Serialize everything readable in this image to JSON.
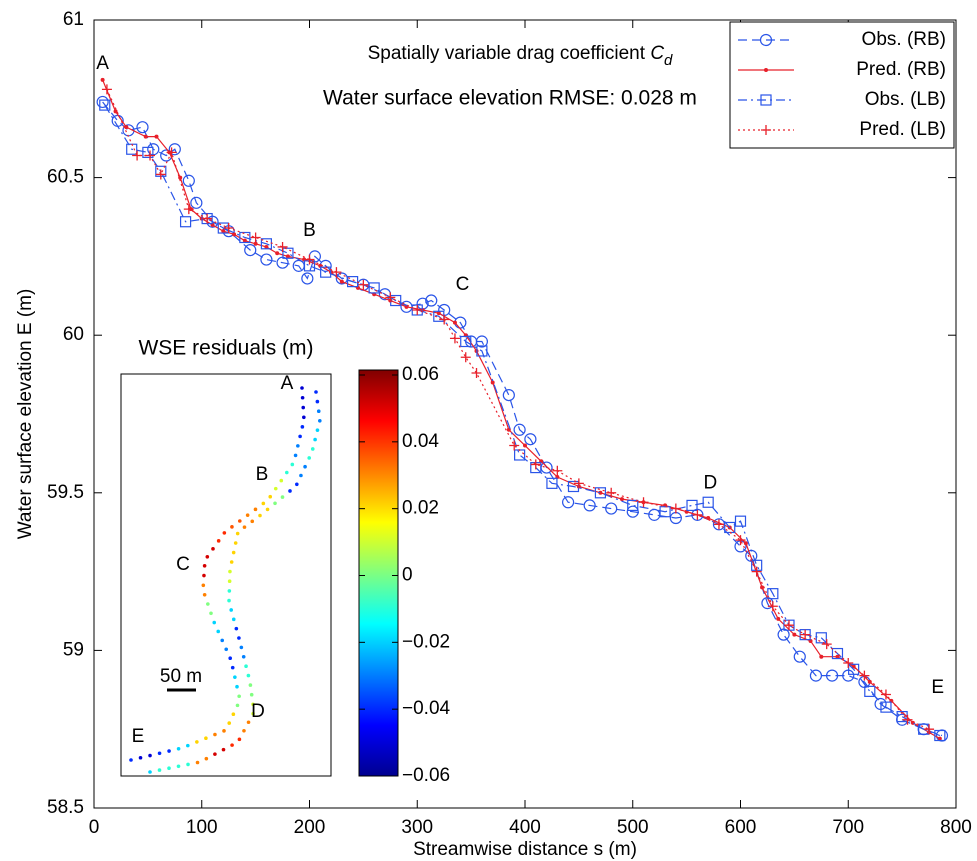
{
  "chart_data": [
    {
      "type": "line",
      "title": "Spatially variable drag coefficient",
      "title_symbol": "C",
      "title_subscript": "d",
      "subtitle": "Water surface elevation RMSE: 0.028 m",
      "x_label": "Streamwise distance s (m)",
      "y_label": "Water surface elevation  E (m)",
      "xlim": [
        0,
        800
      ],
      "xticks": [
        0,
        100,
        200,
        300,
        400,
        500,
        600,
        700,
        800
      ],
      "ylim": [
        58.5,
        61
      ],
      "yticks": [
        58.5,
        59,
        59.5,
        60,
        60.5,
        61
      ],
      "legend": "upper right",
      "annotations": [
        {
          "text": "A",
          "x": 8,
          "y": 60.86
        },
        {
          "text": "B",
          "x": 200,
          "y": 60.33
        },
        {
          "text": "C",
          "x": 342,
          "y": 60.16
        },
        {
          "text": "D",
          "x": 572,
          "y": 59.53
        },
        {
          "text": "E",
          "x": 783,
          "y": 58.88
        }
      ],
      "series": [
        {
          "name": "Obs. (RB)",
          "color": "#2a55e8",
          "linestyle": "dashed",
          "marker": "circle",
          "x": [
            8,
            22,
            32,
            45,
            55,
            67,
            75,
            88,
            95,
            110,
            125,
            145,
            160,
            175,
            190,
            198,
            205,
            215,
            230,
            250,
            270,
            290,
            305,
            313,
            325,
            340,
            350,
            360,
            385,
            395,
            405,
            420,
            440,
            460,
            480,
            500,
            520,
            540,
            560,
            580,
            600,
            610,
            625,
            640,
            655,
            670,
            685,
            700,
            715,
            730,
            750,
            770,
            787
          ],
          "values": [
            60.74,
            60.68,
            60.65,
            60.66,
            60.59,
            60.57,
            60.59,
            60.49,
            60.42,
            60.36,
            60.33,
            60.27,
            60.24,
            60.23,
            60.22,
            60.18,
            60.25,
            60.22,
            60.18,
            60.16,
            60.13,
            60.09,
            60.1,
            60.11,
            60.08,
            60.04,
            59.98,
            59.98,
            59.81,
            59.7,
            59.67,
            59.58,
            59.47,
            59.46,
            59.45,
            59.44,
            59.43,
            59.42,
            59.43,
            59.4,
            59.33,
            59.3,
            59.15,
            59.05,
            58.98,
            58.92,
            58.92,
            58.92,
            58.9,
            58.83,
            58.78,
            58.75,
            58.73
          ]
        },
        {
          "name": "Pred. (RB)",
          "color": "#e8202a",
          "linestyle": "solid",
          "marker": "dot",
          "x": [
            8,
            20,
            30,
            48,
            58,
            70,
            80,
            90,
            100,
            110,
            120,
            130,
            140,
            150,
            160,
            170,
            180,
            195,
            210,
            220,
            230,
            245,
            260,
            275,
            290,
            305,
            320,
            335,
            345,
            355,
            370,
            385,
            400,
            415,
            430,
            450,
            470,
            490,
            510,
            530,
            550,
            570,
            590,
            605,
            620,
            635,
            650,
            665,
            675,
            690,
            705,
            720,
            740,
            760,
            775,
            785
          ],
          "values": [
            60.81,
            60.71,
            60.66,
            60.63,
            60.63,
            60.58,
            60.5,
            60.4,
            60.37,
            60.35,
            60.33,
            60.32,
            60.3,
            60.29,
            60.28,
            60.26,
            60.25,
            60.24,
            60.22,
            60.2,
            60.17,
            60.15,
            60.13,
            60.11,
            60.09,
            60.08,
            60.07,
            60.04,
            60,
            59.95,
            59.85,
            59.7,
            59.65,
            59.6,
            59.55,
            59.52,
            59.5,
            59.48,
            59.47,
            59.46,
            59.44,
            59.42,
            59.39,
            59.34,
            59.2,
            59.1,
            59.05,
            59.03,
            58.98,
            58.98,
            58.95,
            58.9,
            58.84,
            58.77,
            58.74,
            58.72
          ]
        },
        {
          "name": "Obs. (LB)",
          "color": "#2a55e8",
          "linestyle": "dashdot",
          "marker": "square",
          "x": [
            10,
            35,
            50,
            62,
            85,
            105,
            120,
            140,
            160,
            180,
            200,
            215,
            240,
            260,
            280,
            300,
            320,
            345,
            360,
            395,
            410,
            425,
            445,
            470,
            500,
            530,
            555,
            570,
            590,
            600,
            615,
            630,
            645,
            660,
            675,
            690,
            705,
            720,
            735,
            750,
            770,
            785
          ],
          "values": [
            60.73,
            60.59,
            60.58,
            60.52,
            60.36,
            60.37,
            60.34,
            60.31,
            60.29,
            60.26,
            60.22,
            60.2,
            60.17,
            60.15,
            60.11,
            60.08,
            60.06,
            59.98,
            59.95,
            59.62,
            59.58,
            59.53,
            59.52,
            59.5,
            59.46,
            59.44,
            59.46,
            59.47,
            59.39,
            59.41,
            59.27,
            59.18,
            59.08,
            59.05,
            59.04,
            58.99,
            58.94,
            58.87,
            58.82,
            58.79,
            58.75,
            58.73
          ]
        },
        {
          "name": "Pred. (LB)",
          "color": "#e8202a",
          "linestyle": "dotted",
          "marker": "plus",
          "x": [
            12,
            40,
            52,
            62,
            72,
            88,
            105,
            125,
            150,
            175,
            200,
            225,
            250,
            275,
            300,
            325,
            335,
            345,
            355,
            390,
            410,
            430,
            450,
            480,
            510,
            540,
            560,
            580,
            600,
            615,
            630,
            645,
            660,
            680,
            700,
            715,
            735,
            755,
            775
          ],
          "values": [
            60.78,
            60.57,
            60.57,
            60.51,
            60.58,
            60.4,
            60.37,
            60.34,
            60.31,
            60.28,
            60.24,
            60.2,
            60.16,
            60.12,
            60.08,
            60.05,
            59.99,
            59.93,
            59.88,
            59.65,
            59.59,
            59.57,
            59.53,
            59.5,
            59.47,
            59.45,
            59.43,
            59.4,
            59.35,
            59.25,
            59.14,
            59.08,
            59.05,
            59.02,
            58.96,
            58.92,
            58.86,
            58.78,
            58.75
          ]
        }
      ]
    },
    {
      "type": "residual-map",
      "title": "WSE residuals (m)",
      "scale_label": "50 m",
      "labels": [
        "A",
        "B",
        "C",
        "D",
        "E"
      ],
      "clim": [
        -0.06,
        0.06
      ],
      "cticks": [
        {
          "value": -0.06,
          "label": "−0.06"
        },
        {
          "value": -0.04,
          "label": "−0.04"
        },
        {
          "value": -0.02,
          "label": "−0.02"
        },
        0,
        0.02,
        0.04,
        0.06
      ],
      "banks": [
        {
          "values": [
            -0.05,
            -0.05,
            -0.04,
            -0.03,
            -0.01,
            0.01,
            0.02,
            0.03,
            0.035,
            0.04,
            0.05,
            0.05,
            0.03,
            0,
            -0.02,
            -0.03,
            -0.04,
            -0.02,
            0,
            0.02,
            0.03,
            0.02,
            -0.02,
            -0.04,
            -0.05,
            -0.04
          ]
        },
        {
          "values": [
            -0.04,
            -0.03,
            -0.02,
            -0.01,
            -0.03,
            -0.04,
            0,
            0.02,
            0.03,
            0.02,
            0.02,
            0.01,
            -0.01,
            -0.02,
            -0.04,
            -0.03,
            -0.01,
            0,
            0.01,
            0.03,
            0.04,
            0.05,
            0.03,
            -0.01,
            -0.01,
            -0.02
          ]
        }
      ]
    }
  ]
}
